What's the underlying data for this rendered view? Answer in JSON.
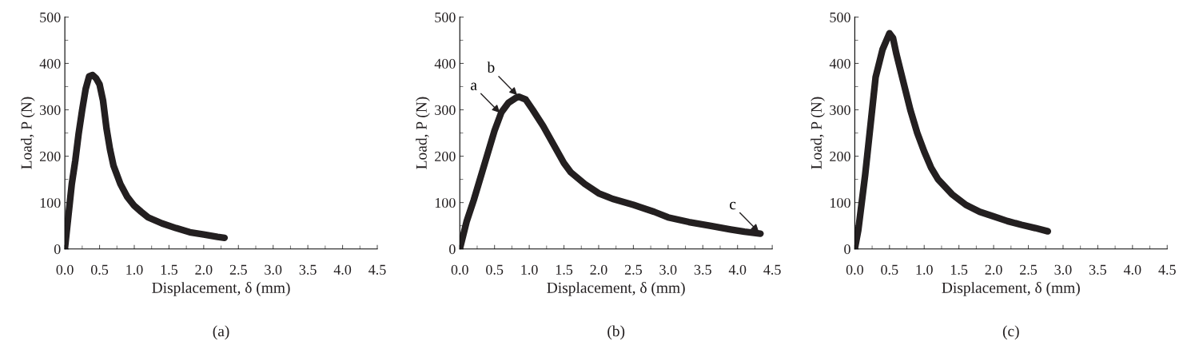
{
  "chart_data": [
    {
      "type": "line",
      "xlabel": "Displacement, δ (mm)",
      "ylabel": "Load, P (N)",
      "xlim": [
        0,
        4.5
      ],
      "ylim": [
        0,
        500
      ],
      "xticks": [
        {
          "value": 0,
          "label": "0.0"
        },
        {
          "value": 0.5,
          "label": "0.5"
        },
        {
          "value": 1,
          "label": "1.0"
        },
        {
          "value": 1.5,
          "label": "1.5"
        },
        {
          "value": 2,
          "label": "2.0"
        },
        {
          "value": 2.5,
          "label": "2.5"
        },
        {
          "value": 3,
          "label": "3.0"
        },
        {
          "value": 3.5,
          "label": "3.5"
        },
        {
          "value": 4,
          "label": "4.0"
        },
        {
          "value": 4.5,
          "label": "4.5"
        }
      ],
      "yticks": [
        0,
        100,
        200,
        300,
        400,
        500
      ],
      "grid": false,
      "annotations": [
        "(a)"
      ],
      "series": [
        {
          "color": "#231f20",
          "x": [
            0,
            0.05,
            0.1,
            0.15,
            0.2,
            0.25,
            0.3,
            0.35,
            0.4,
            0.45,
            0.5,
            0.55,
            0.6,
            0.65,
            0.7,
            0.8,
            0.9,
            1.0,
            1.1,
            1.2,
            1.4,
            1.6,
            1.8,
            2.0,
            2.2,
            2.3
          ],
          "values": [
            0,
            70,
            140,
            190,
            250,
            300,
            345,
            372,
            375,
            368,
            355,
            320,
            260,
            215,
            180,
            140,
            112,
            93,
            80,
            68,
            55,
            45,
            36,
            31,
            26,
            24
          ]
        }
      ]
    },
    {
      "type": "line",
      "xlabel": "Displacement, δ (mm)",
      "ylabel": "Load, P (N)",
      "xlim": [
        0,
        4.5
      ],
      "ylim": [
        0,
        500
      ],
      "xticks": [
        {
          "value": 0,
          "label": "0.0"
        },
        {
          "value": 0.5,
          "label": "0.5"
        },
        {
          "value": 1,
          "label": "1.0"
        },
        {
          "value": 1.5,
          "label": "1.5"
        },
        {
          "value": 2,
          "label": "2.0"
        },
        {
          "value": 2.5,
          "label": "2.5"
        },
        {
          "value": 3,
          "label": "3.0"
        },
        {
          "value": 3.5,
          "label": "3.5"
        },
        {
          "value": 4,
          "label": "4.0"
        },
        {
          "value": 4.5,
          "label": "4.5"
        }
      ],
      "yticks": [
        0,
        100,
        200,
        300,
        400,
        500
      ],
      "grid": false,
      "annotations": [
        {
          "text": "a",
          "x": 0.6,
          "y": 290
        },
        {
          "text": "b",
          "x": 0.85,
          "y": 328
        },
        {
          "text": "c",
          "x": 4.33,
          "y": 33
        },
        "(b)"
      ],
      "series": [
        {
          "color": "#231f20",
          "x": [
            0,
            0.1,
            0.2,
            0.3,
            0.4,
            0.5,
            0.6,
            0.7,
            0.8,
            0.85,
            0.95,
            1.05,
            1.2,
            1.35,
            1.5,
            1.6,
            1.8,
            2.0,
            2.2,
            2.5,
            2.8,
            3.0,
            3.3,
            3.6,
            3.9,
            4.1,
            4.33
          ],
          "values": [
            0,
            60,
            105,
            155,
            205,
            255,
            295,
            315,
            325,
            328,
            322,
            300,
            265,
            225,
            185,
            165,
            140,
            120,
            108,
            95,
            80,
            68,
            58,
            50,
            42,
            37,
            33
          ]
        }
      ]
    },
    {
      "type": "line",
      "xlabel": "Displacement, δ (mm)",
      "ylabel": "Load, P (N)",
      "xlim": [
        0,
        4.5
      ],
      "ylim": [
        0,
        500
      ],
      "xticks": [
        {
          "value": 0,
          "label": "0.0"
        },
        {
          "value": 0.5,
          "label": "0.5"
        },
        {
          "value": 1,
          "label": "1.0"
        },
        {
          "value": 1.5,
          "label": "1.5"
        },
        {
          "value": 2,
          "label": "2.0"
        },
        {
          "value": 2.5,
          "label": "2.5"
        },
        {
          "value": 3,
          "label": "3.0"
        },
        {
          "value": 3.5,
          "label": "3.5"
        },
        {
          "value": 4,
          "label": "4.0"
        },
        {
          "value": 4.5,
          "label": "4.5"
        }
      ],
      "yticks": [
        0,
        100,
        200,
        300,
        400,
        500
      ],
      "grid": false,
      "annotations": [
        "(c)"
      ],
      "series": [
        {
          "color": "#231f20",
          "x": [
            0,
            0.05,
            0.1,
            0.15,
            0.2,
            0.25,
            0.3,
            0.4,
            0.5,
            0.55,
            0.6,
            0.7,
            0.8,
            0.9,
            1.0,
            1.1,
            1.2,
            1.4,
            1.6,
            1.8,
            2.0,
            2.2,
            2.4,
            2.6,
            2.78
          ],
          "values": [
            0,
            40,
            100,
            160,
            230,
            300,
            370,
            430,
            465,
            455,
            420,
            360,
            300,
            250,
            210,
            175,
            150,
            118,
            95,
            80,
            70,
            60,
            52,
            45,
            38
          ]
        }
      ]
    }
  ]
}
